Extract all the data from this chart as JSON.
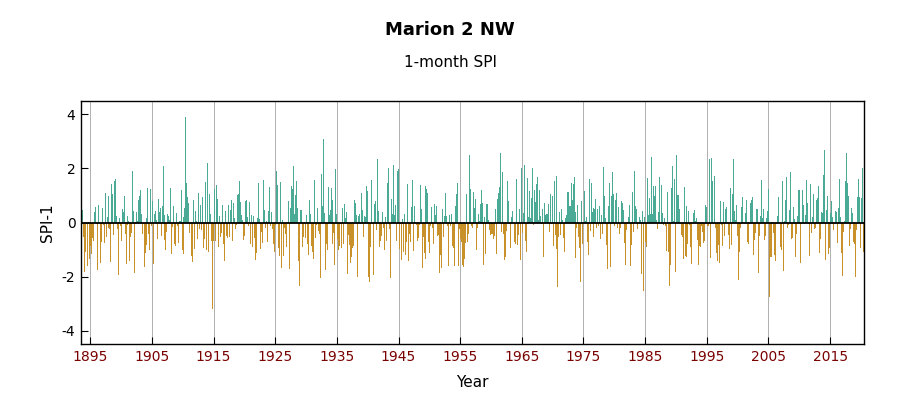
{
  "title": "Marion 2 NW",
  "subtitle": "1-month SPI",
  "xlabel": "Year",
  "ylabel": "SPI-1",
  "year_start": 1893,
  "year_end": 2021,
  "ylim": [
    -4.5,
    4.5
  ],
  "yticks": [
    -4,
    -2,
    0,
    2,
    4
  ],
  "xticks": [
    1895,
    1905,
    1915,
    1925,
    1935,
    1945,
    1955,
    1965,
    1975,
    1985,
    1995,
    2005,
    2015
  ],
  "color_positive": "#4aaa96",
  "color_negative": "#c8912a",
  "color_zero_line": "black",
  "color_vgrid": "#b0b0b0",
  "bg_color": "white",
  "seed": 42,
  "xticklabel_color": "#7a0000",
  "title_fontsize": 13,
  "subtitle_fontsize": 11,
  "axis_label_fontsize": 11,
  "tick_fontsize": 10
}
